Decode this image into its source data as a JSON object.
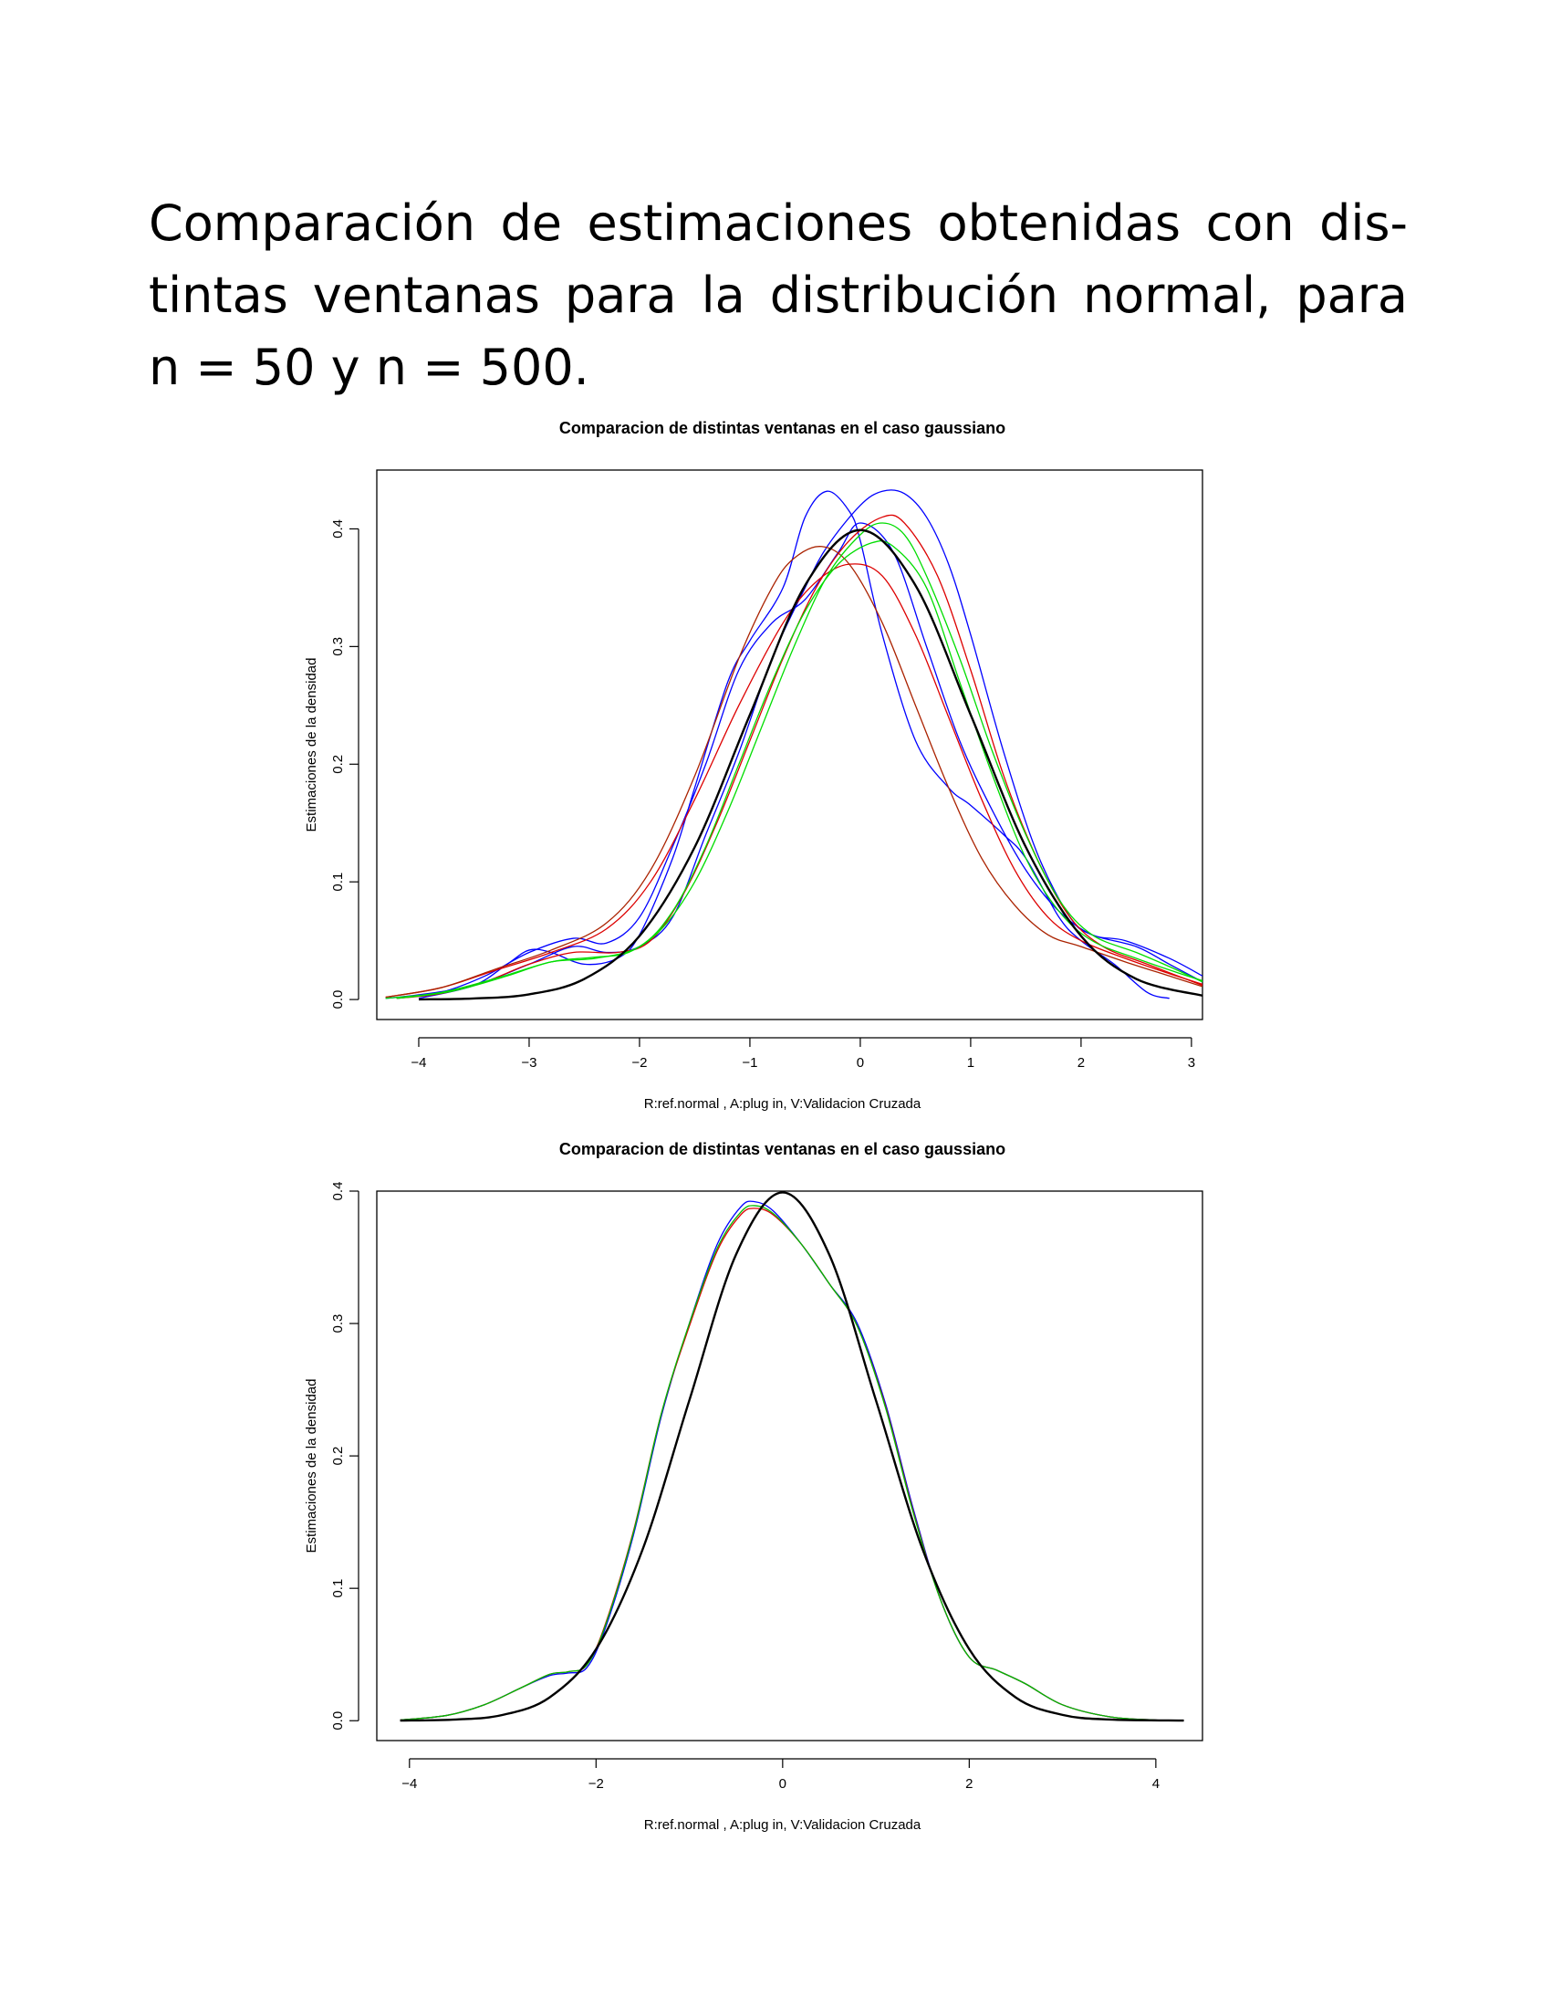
{
  "heading": {
    "line1": "Comparación de estimaciones obtenidas con dis-",
    "line2": "tintas ventanas para la distribución normal, para",
    "line3": "n = 50 y n = 500."
  },
  "colors": {
    "reference": "#000000",
    "blue": "#0000ff",
    "red": "#d00000",
    "green": "#00dd00",
    "darkred": "#aa2200"
  },
  "chart_data": [
    {
      "type": "line",
      "title": "Comparacion de distintas ventanas en el caso gaussiano",
      "xlabel": "R:ref.normal , A:plug in, V:Validacion Cruzada",
      "ylabel": "Estimaciones de la densidad",
      "xlim": [
        -4.38,
        3.1
      ],
      "ylim": [
        -0.017,
        0.45
      ],
      "xticks": [
        "−4",
        "−3",
        "−2",
        "−1",
        "0",
        "1",
        "2",
        "3"
      ],
      "xtick_values": [
        -4,
        -3,
        -2,
        -1,
        0,
        1,
        2,
        3
      ],
      "yticks": [
        "0.0",
        "0.1",
        "0.2",
        "0.3",
        "0.4"
      ],
      "ytick_values": [
        0,
        0.1,
        0.2,
        0.3,
        0.4
      ],
      "grid": false,
      "series": [
        {
          "color": "#000000",
          "width": 2.4,
          "x": [
            -4,
            -3.5,
            -3,
            -2.5,
            -2,
            -1.5,
            -1,
            -0.5,
            0,
            0.5,
            1,
            1.5,
            2,
            2.5,
            3.1
          ],
          "y": [
            0.0001,
            0.0009,
            0.0044,
            0.0175,
            0.054,
            0.1295,
            0.242,
            0.352,
            0.399,
            0.352,
            0.242,
            0.1295,
            0.054,
            0.0175,
            0.0033
          ]
        },
        {
          "color": "#0000ff",
          "width": 1.3,
          "x": [
            -4.0,
            -3.5,
            -3.2,
            -3.0,
            -2.8,
            -2.5,
            -2.2,
            -2.0,
            -1.7,
            -1.5,
            -1.2,
            -1.0,
            -0.7,
            -0.5,
            -0.3,
            -0.1,
            0.0,
            0.2,
            0.5,
            0.8,
            1.0,
            1.3,
            1.5,
            1.8,
            2.0,
            2.3,
            2.6,
            2.8
          ],
          "y": [
            0.001,
            0.012,
            0.03,
            0.042,
            0.04,
            0.03,
            0.035,
            0.055,
            0.12,
            0.18,
            0.27,
            0.305,
            0.35,
            0.41,
            0.432,
            0.415,
            0.39,
            0.31,
            0.22,
            0.18,
            0.165,
            0.14,
            0.12,
            0.07,
            0.05,
            0.03,
            0.006,
            0.001
          ]
        },
        {
          "color": "#0000ff",
          "width": 1.3,
          "x": [
            -4.3,
            -4.0,
            -3.5,
            -3.0,
            -2.6,
            -2.3,
            -2.0,
            -1.7,
            -1.4,
            -1.1,
            -0.8,
            -0.5,
            -0.3,
            0.0,
            0.2,
            0.4,
            0.6,
            0.8,
            1.0,
            1.3,
            1.6,
            1.9,
            2.1,
            2.5,
            2.8,
            3.1
          ],
          "y": [
            0.001,
            0.004,
            0.012,
            0.03,
            0.045,
            0.04,
            0.045,
            0.07,
            0.14,
            0.21,
            0.29,
            0.35,
            0.385,
            0.42,
            0.432,
            0.43,
            0.41,
            0.37,
            0.31,
            0.21,
            0.125,
            0.07,
            0.055,
            0.045,
            0.03,
            0.015
          ]
        },
        {
          "color": "#0000ff",
          "width": 1.3,
          "x": [
            -4.2,
            -3.8,
            -3.4,
            -3.0,
            -2.6,
            -2.3,
            -2.0,
            -1.7,
            -1.4,
            -1.1,
            -0.8,
            -0.5,
            -0.2,
            0.0,
            0.3,
            0.6,
            0.9,
            1.2,
            1.5,
            1.8,
            2.1,
            2.4,
            2.8,
            3.1
          ],
          "y": [
            0.001,
            0.006,
            0.02,
            0.04,
            0.052,
            0.048,
            0.07,
            0.13,
            0.2,
            0.28,
            0.32,
            0.34,
            0.38,
            0.405,
            0.38,
            0.3,
            0.22,
            0.16,
            0.11,
            0.075,
            0.055,
            0.05,
            0.035,
            0.02
          ]
        },
        {
          "color": "#dd0000",
          "width": 1.3,
          "x": [
            -4.2,
            -3.8,
            -3.4,
            -3.0,
            -2.6,
            -2.2,
            -1.9,
            -1.6,
            -1.3,
            -1.0,
            -0.7,
            -0.4,
            -0.1,
            0.2,
            0.4,
            0.7,
            1.0,
            1.3,
            1.6,
            1.9,
            2.2,
            2.6,
            3.1
          ],
          "y": [
            0.001,
            0.005,
            0.015,
            0.03,
            0.04,
            0.04,
            0.05,
            0.09,
            0.15,
            0.22,
            0.29,
            0.35,
            0.39,
            0.41,
            0.405,
            0.36,
            0.28,
            0.19,
            0.12,
            0.07,
            0.045,
            0.03,
            0.012
          ]
        },
        {
          "color": "#dd0000",
          "width": 1.3,
          "x": [
            -4.3,
            -3.8,
            -3.3,
            -2.8,
            -2.3,
            -1.9,
            -1.5,
            -1.1,
            -0.7,
            -0.4,
            -0.1,
            0.2,
            0.5,
            0.8,
            1.1,
            1.4,
            1.7,
            2.0,
            2.4,
            2.8,
            3.1
          ],
          "y": [
            0.002,
            0.01,
            0.025,
            0.04,
            0.06,
            0.1,
            0.17,
            0.25,
            0.32,
            0.355,
            0.37,
            0.36,
            0.31,
            0.24,
            0.17,
            0.11,
            0.07,
            0.05,
            0.035,
            0.022,
            0.013
          ]
        },
        {
          "color": "#aa2200",
          "width": 1.3,
          "x": [
            -4.3,
            -3.8,
            -3.3,
            -2.8,
            -2.3,
            -1.9,
            -1.5,
            -1.1,
            -0.8,
            -0.6,
            -0.35,
            -0.1,
            0.2,
            0.5,
            0.8,
            1.1,
            1.4,
            1.7,
            2.0,
            2.4,
            2.8,
            3.1
          ],
          "y": [
            0.002,
            0.01,
            0.026,
            0.042,
            0.065,
            0.11,
            0.19,
            0.29,
            0.35,
            0.375,
            0.385,
            0.37,
            0.32,
            0.25,
            0.18,
            0.12,
            0.08,
            0.055,
            0.045,
            0.032,
            0.02,
            0.011
          ]
        },
        {
          "color": "#00dd00",
          "width": 1.3,
          "x": [
            -4.3,
            -3.8,
            -3.3,
            -2.8,
            -2.4,
            -2.1,
            -1.8,
            -1.5,
            -1.2,
            -0.9,
            -0.6,
            -0.3,
            0.0,
            0.2,
            0.4,
            0.6,
            0.9,
            1.2,
            1.5,
            1.8,
            2.1,
            2.5,
            2.8,
            3.1
          ],
          "y": [
            0.001,
            0.006,
            0.018,
            0.032,
            0.036,
            0.04,
            0.06,
            0.1,
            0.16,
            0.23,
            0.3,
            0.36,
            0.395,
            0.405,
            0.395,
            0.36,
            0.29,
            0.21,
            0.14,
            0.085,
            0.055,
            0.04,
            0.028,
            0.015
          ]
        },
        {
          "color": "#00dd00",
          "width": 1.3,
          "x": [
            -4.2,
            -3.7,
            -3.2,
            -2.8,
            -2.4,
            -2.0,
            -1.7,
            -1.4,
            -1.1,
            -0.8,
            -0.5,
            -0.2,
            0.1,
            0.3,
            0.6,
            0.9,
            1.2,
            1.5,
            1.8,
            2.1,
            2.5,
            2.9,
            3.1
          ],
          "y": [
            0.001,
            0.007,
            0.02,
            0.032,
            0.035,
            0.045,
            0.075,
            0.13,
            0.2,
            0.27,
            0.33,
            0.37,
            0.388,
            0.385,
            0.35,
            0.27,
            0.19,
            0.12,
            0.075,
            0.05,
            0.035,
            0.022,
            0.016
          ]
        }
      ]
    },
    {
      "type": "line",
      "title": "Comparacion de distintas ventanas en el caso gaussiano",
      "xlabel": "R:ref.normal , A:plug in, V:Validacion Cruzada",
      "ylabel": "Estimaciones de la densidad",
      "xlim": [
        -4.35,
        4.5
      ],
      "ylim": [
        -0.015,
        0.4
      ],
      "xticks": [
        "−4",
        "−2",
        "0",
        "2",
        "4"
      ],
      "xtick_values": [
        -4,
        -2,
        0,
        2,
        4
      ],
      "yticks": [
        "0.0",
        "0.1",
        "0.2",
        "0.3",
        "0.4"
      ],
      "ytick_values": [
        0,
        0.1,
        0.2,
        0.3,
        0.4
      ],
      "grid": false,
      "series": [
        {
          "color": "#000000",
          "width": 2.4,
          "x": [
            -4.1,
            -3.5,
            -3,
            -2.5,
            -2,
            -1.5,
            -1,
            -0.5,
            0,
            0.5,
            1,
            1.5,
            2,
            2.5,
            3,
            3.5,
            4.3
          ],
          "y": [
            0.0001,
            0.0009,
            0.0044,
            0.0175,
            0.054,
            0.1295,
            0.242,
            0.352,
            0.399,
            0.352,
            0.242,
            0.1295,
            0.054,
            0.0175,
            0.0044,
            0.0009,
            0.0001
          ]
        },
        {
          "color": "#0000ff",
          "width": 1.3,
          "x": [
            -4.1,
            -3.6,
            -3.2,
            -2.8,
            -2.5,
            -2.3,
            -2.1,
            -1.9,
            -1.6,
            -1.3,
            -1.0,
            -0.7,
            -0.45,
            -0.3,
            -0.1,
            0.2,
            0.5,
            0.8,
            1.1,
            1.4,
            1.7,
            2.0,
            2.3,
            2.6,
            3.0,
            3.5,
            4.0,
            4.3
          ],
          "y": [
            0.0005,
            0.004,
            0.012,
            0.025,
            0.034,
            0.036,
            0.04,
            0.07,
            0.14,
            0.23,
            0.3,
            0.36,
            0.388,
            0.392,
            0.385,
            0.36,
            0.33,
            0.3,
            0.24,
            0.16,
            0.09,
            0.048,
            0.038,
            0.028,
            0.012,
            0.003,
            0.0005,
            0.0001
          ]
        },
        {
          "color": "#dd0000",
          "width": 1.3,
          "x": [
            -4.1,
            -3.6,
            -3.2,
            -2.8,
            -2.5,
            -2.3,
            -2.1,
            -1.9,
            -1.6,
            -1.3,
            -1.0,
            -0.7,
            -0.45,
            -0.3,
            -0.1,
            0.2,
            0.5,
            0.8,
            1.1,
            1.4,
            1.7,
            2.0,
            2.3,
            2.6,
            3.0,
            3.5,
            4.0,
            4.3
          ],
          "y": [
            0.0005,
            0.004,
            0.012,
            0.025,
            0.035,
            0.037,
            0.042,
            0.073,
            0.143,
            0.232,
            0.298,
            0.355,
            0.382,
            0.387,
            0.382,
            0.36,
            0.33,
            0.298,
            0.238,
            0.158,
            0.09,
            0.048,
            0.038,
            0.028,
            0.012,
            0.003,
            0.0005,
            0.0001
          ]
        },
        {
          "color": "#00bb00",
          "width": 1.3,
          "x": [
            -4.1,
            -3.6,
            -3.2,
            -2.8,
            -2.5,
            -2.3,
            -2.1,
            -1.9,
            -1.6,
            -1.3,
            -1.0,
            -0.7,
            -0.45,
            -0.3,
            -0.1,
            0.2,
            0.5,
            0.8,
            1.1,
            1.4,
            1.7,
            2.0,
            2.3,
            2.6,
            3.0,
            3.5,
            4.0,
            4.3
          ],
          "y": [
            0.0005,
            0.004,
            0.012,
            0.025,
            0.035,
            0.037,
            0.042,
            0.072,
            0.142,
            0.232,
            0.3,
            0.357,
            0.384,
            0.389,
            0.383,
            0.36,
            0.33,
            0.298,
            0.237,
            0.157,
            0.09,
            0.048,
            0.038,
            0.028,
            0.012,
            0.003,
            0.0005,
            0.0001
          ]
        }
      ]
    }
  ]
}
